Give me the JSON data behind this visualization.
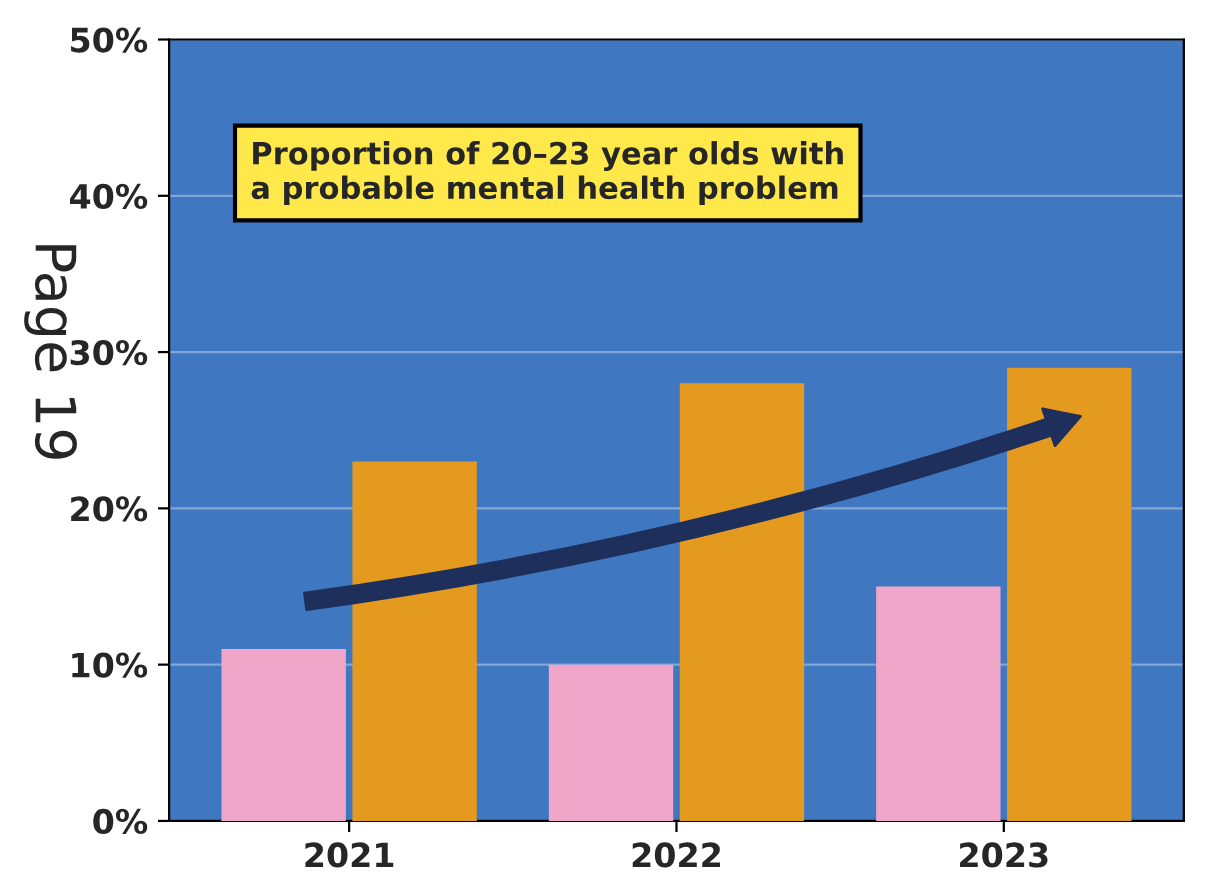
{
  "chart_data": {
    "type": "bar",
    "title": "Proportion of 20–23 year olds with\na probable mental health problem",
    "categories": [
      "2021",
      "2022",
      "2023"
    ],
    "series": [
      {
        "color": "#f0a6c8",
        "values": [
          11,
          10,
          15
        ]
      },
      {
        "color": "#e49a1e",
        "values": [
          23,
          28,
          29
        ]
      }
    ],
    "ylim": [
      0,
      50
    ],
    "yticks": [
      {
        "value": 0,
        "label": "0%"
      },
      {
        "value": 10,
        "label": "10%"
      },
      {
        "value": 20,
        "label": "20%"
      },
      {
        "value": 30,
        "label": "30%"
      },
      {
        "value": 40,
        "label": "40%"
      },
      {
        "value": 50,
        "label": "50%"
      }
    ],
    "grid": "y",
    "annotations": [
      "Page 19"
    ]
  }
}
